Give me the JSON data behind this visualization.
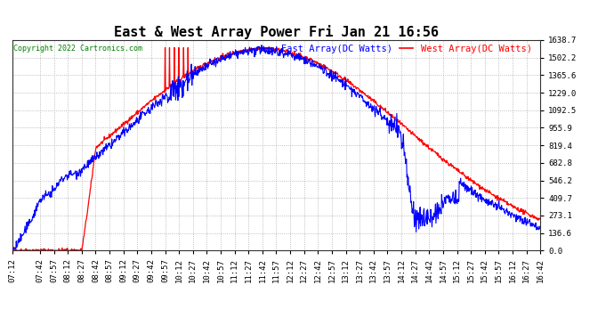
{
  "title": "East & West Array Power Fri Jan 21 16:56",
  "legend_east": "East Array(DC Watts)",
  "legend_west": "West Array(DC Watts)",
  "copyright": "Copyright 2022 Cartronics.com",
  "east_color": "blue",
  "west_color": "red",
  "bg_color": "#ffffff",
  "grid_color": "#aaaaaa",
  "yticks": [
    0.0,
    136.6,
    273.1,
    409.7,
    546.2,
    682.8,
    819.4,
    955.9,
    1092.5,
    1229.0,
    1365.6,
    1502.2,
    1638.7
  ],
  "xtick_labels": [
    "07:12",
    "07:42",
    "07:57",
    "08:12",
    "08:27",
    "08:42",
    "08:57",
    "09:12",
    "09:27",
    "09:42",
    "09:57",
    "10:12",
    "10:27",
    "10:42",
    "10:57",
    "11:12",
    "11:27",
    "11:42",
    "11:57",
    "12:12",
    "12:27",
    "12:42",
    "12:57",
    "13:12",
    "13:27",
    "13:42",
    "13:57",
    "14:12",
    "14:27",
    "14:42",
    "14:57",
    "15:12",
    "15:27",
    "15:42",
    "15:57",
    "16:12",
    "16:27",
    "16:42"
  ],
  "ymax": 1638.7,
  "ymin": 0.0,
  "title_fontsize": 11,
  "label_fontsize": 7.5,
  "tick_fontsize": 6.5,
  "copyright_fontsize": 6.0
}
